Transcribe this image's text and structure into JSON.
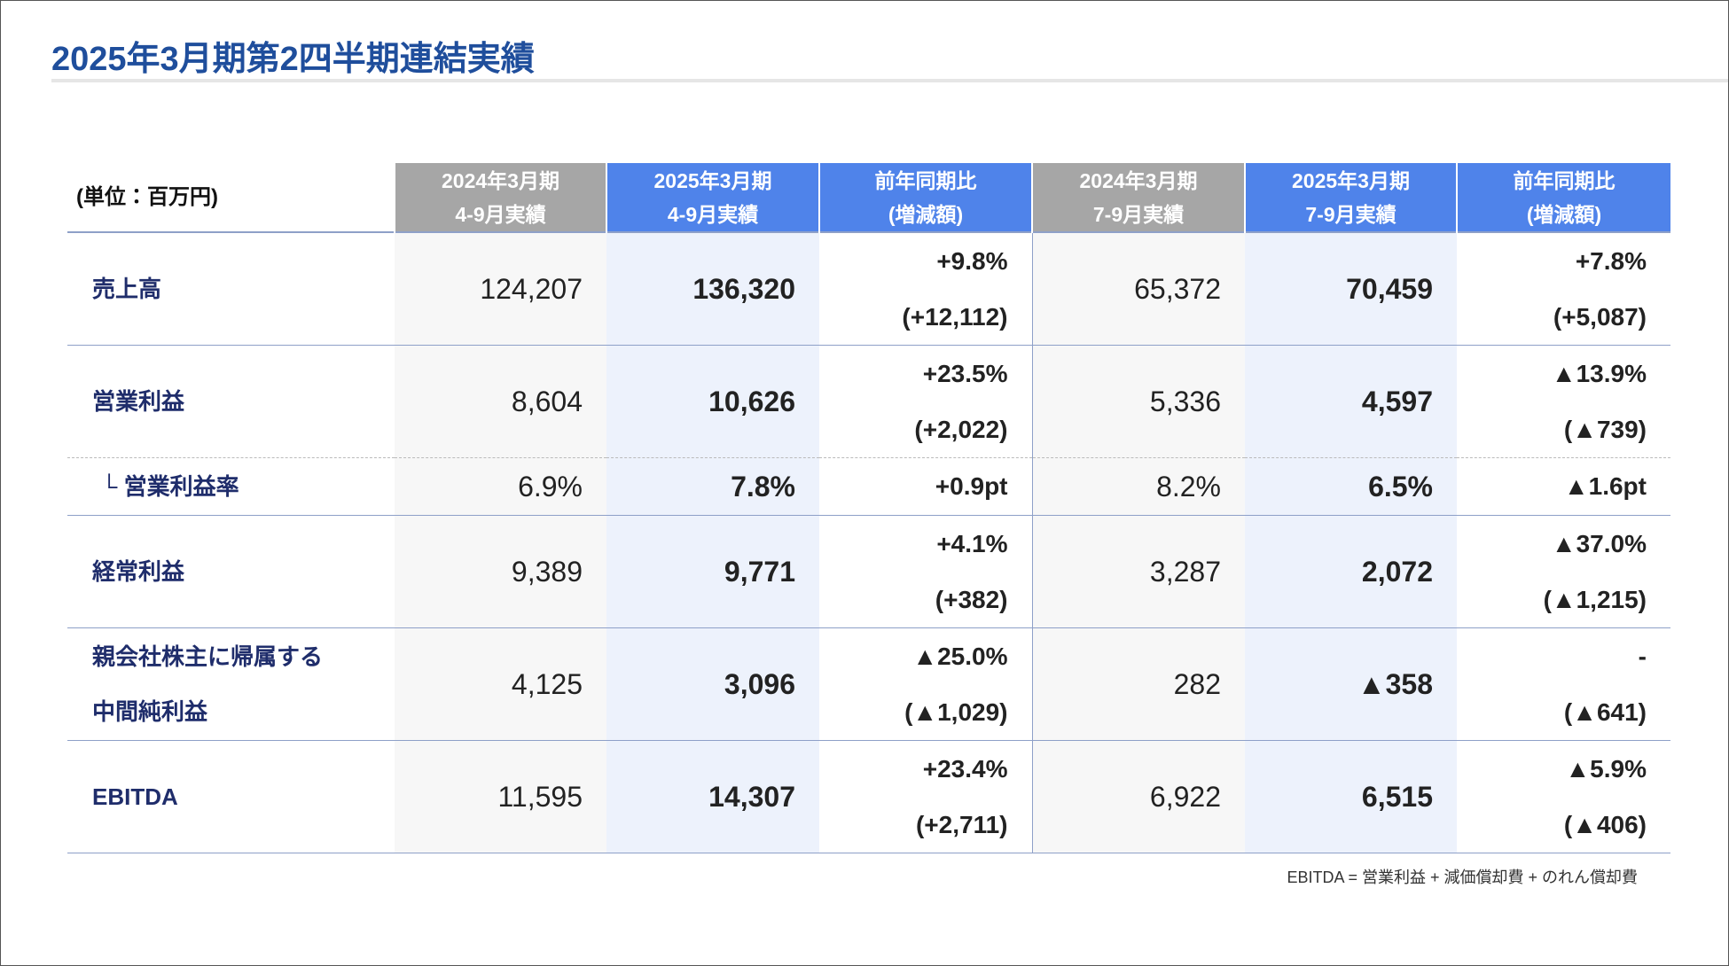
{
  "header": {
    "title": "2025年3月期第2四半期連結実績"
  },
  "table": {
    "unit": "(単位：百万円)",
    "columns": [
      [
        "2024年3月期",
        "4-9月実績"
      ],
      [
        "2025年3月期",
        "4-9月実績"
      ],
      [
        "前年同期比",
        "(増減額)"
      ],
      [
        "2024年3月期",
        "7-9月実績"
      ],
      [
        "2025年3月期",
        "7-9月実績"
      ],
      [
        "前年同期比",
        "(増減額)"
      ]
    ],
    "rows": [
      {
        "label": [
          "売上高"
        ],
        "cells": [
          [
            "124,207"
          ],
          [
            "136,320"
          ],
          [
            "+9.8%",
            "(+12,112)"
          ],
          [
            "65,372"
          ],
          [
            "70,459"
          ],
          [
            "+7.8%",
            "(+5,087)"
          ]
        ]
      },
      {
        "label": [
          "営業利益"
        ],
        "cells": [
          [
            "8,604"
          ],
          [
            "10,626"
          ],
          [
            "+23.5%",
            "(+2,022)"
          ],
          [
            "5,336"
          ],
          [
            "4,597"
          ],
          [
            "▲13.9%",
            "(▲739)"
          ]
        ]
      },
      {
        "label": [
          "└ 営業利益率"
        ],
        "cells": [
          [
            "6.9%"
          ],
          [
            "7.8%"
          ],
          [
            "+0.9pt"
          ],
          [
            "8.2%"
          ],
          [
            "6.5%"
          ],
          [
            "▲1.6pt"
          ]
        ]
      },
      {
        "label": [
          "経常利益"
        ],
        "cells": [
          [
            "9,389"
          ],
          [
            "9,771"
          ],
          [
            "+4.1%",
            "(+382)"
          ],
          [
            "3,287"
          ],
          [
            "2,072"
          ],
          [
            "▲37.0%",
            "(▲1,215)"
          ]
        ]
      },
      {
        "label": [
          "親会社株主に帰属する",
          "中間純利益"
        ],
        "cells": [
          [
            "4,125"
          ],
          [
            "3,096"
          ],
          [
            "▲25.0%",
            "(▲1,029)"
          ],
          [
            "282"
          ],
          [
            "▲358"
          ],
          [
            "-",
            "(▲641)"
          ]
        ]
      },
      {
        "label": [
          "EBITDA"
        ],
        "cells": [
          [
            "11,595"
          ],
          [
            "14,307"
          ],
          [
            "+23.4%",
            "(+2,711)"
          ],
          [
            "6,922"
          ],
          [
            "6,515"
          ],
          [
            "▲5.9%",
            "(▲406)"
          ]
        ]
      }
    ]
  },
  "footnote": "EBITDA = 営業利益 + 減価償却費 + のれん償却費"
}
